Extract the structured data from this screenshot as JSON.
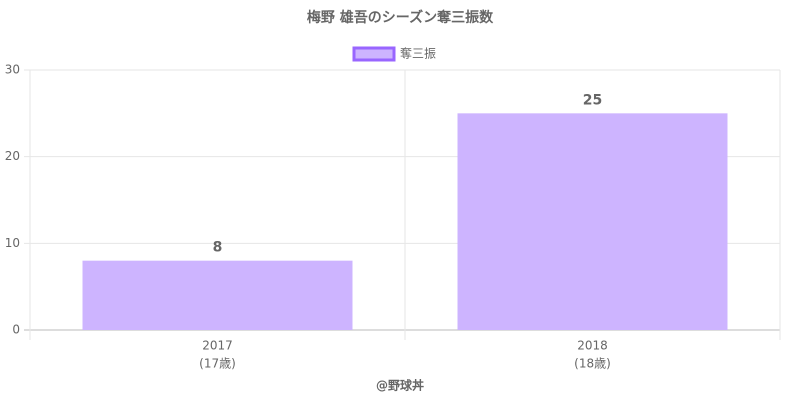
{
  "chart_data": {
    "type": "bar",
    "title": "梅野 雄吾のシーズン奪三振数",
    "categories": [
      "2017",
      "2018"
    ],
    "category_sublabels": [
      "(17歳)",
      "(18歳)"
    ],
    "series": [
      {
        "name": "奪三振",
        "color": "#cdb4ff",
        "border_color": "#9966ff",
        "values": [
          8,
          25
        ]
      }
    ],
    "ylim": [
      0,
      30
    ],
    "yticks": [
      0,
      10,
      20,
      30
    ],
    "grid": true,
    "legend": "top",
    "caption": "@野球丼"
  }
}
